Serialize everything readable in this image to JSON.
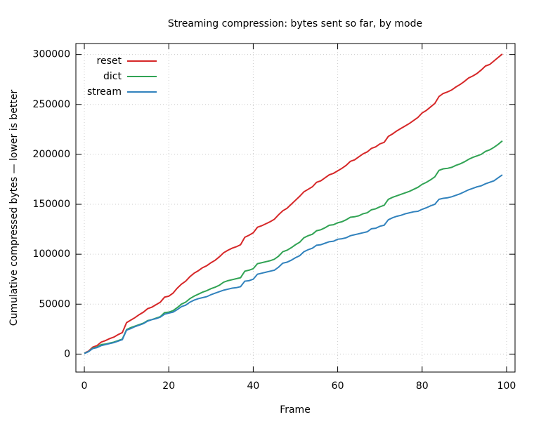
{
  "chart_data": {
    "type": "line",
    "title": "Streaming compression: bytes sent so far, by mode",
    "x_label": "Frame",
    "y_label": "Cumulative compressed bytes — lower is better",
    "x": [
      0,
      1,
      2,
      3,
      4,
      5,
      6,
      7,
      8,
      9,
      10,
      11,
      12,
      13,
      14,
      15,
      16,
      17,
      18,
      19,
      20,
      21,
      22,
      23,
      24,
      25,
      26,
      27,
      28,
      29,
      30,
      31,
      32,
      33,
      34,
      35,
      36,
      37,
      38,
      39,
      40,
      41,
      42,
      43,
      44,
      45,
      46,
      47,
      48,
      49,
      50,
      51,
      52,
      53,
      54,
      55,
      56,
      57,
      58,
      59,
      60,
      61,
      62,
      63,
      64,
      65,
      66,
      67,
      68,
      69,
      70,
      71,
      72,
      73,
      74,
      75,
      76,
      77,
      78,
      79,
      80,
      81,
      82,
      83,
      84,
      85,
      86,
      87,
      88,
      89,
      90,
      91,
      92,
      93,
      94,
      95,
      96,
      97,
      98,
      99
    ],
    "series": [
      {
        "name": "reset",
        "color": "#d62728",
        "values": [
          1000,
          3000,
          7000,
          8500,
          12000,
          13500,
          15500,
          17000,
          19500,
          21500,
          31500,
          34000,
          36500,
          39500,
          42000,
          45500,
          47000,
          49500,
          52000,
          57000,
          58000,
          61000,
          66000,
          70000,
          73000,
          77500,
          81000,
          83500,
          86500,
          88500,
          91500,
          94000,
          97500,
          101500,
          104000,
          106000,
          107500,
          109500,
          117000,
          119000,
          121500,
          127000,
          128500,
          130500,
          132500,
          135000,
          139500,
          143500,
          146000,
          150000,
          154000,
          158000,
          162500,
          165000,
          167500,
          172000,
          173500,
          176500,
          179500,
          181000,
          183500,
          186000,
          189000,
          193000,
          194500,
          197500,
          200500,
          202500,
          206000,
          207500,
          210500,
          212000,
          218000,
          220500,
          223500,
          226000,
          228500,
          231000,
          234000,
          237000,
          241500,
          244000,
          247500,
          251000,
          258000,
          261000,
          262500,
          264500,
          267500,
          270000,
          273000,
          276500,
          278500,
          281000,
          284500,
          288500,
          290000,
          293500,
          297000,
          300500
        ]
      },
      {
        "name": "dict",
        "color": "#31a354",
        "values": [
          800,
          2500,
          6000,
          7000,
          9500,
          10000,
          11000,
          12000,
          13500,
          15000,
          24500,
          26500,
          28000,
          29500,
          31000,
          33500,
          34500,
          36000,
          37500,
          41500,
          42000,
          43500,
          46500,
          50000,
          52000,
          55500,
          58000,
          60000,
          62000,
          63500,
          65500,
          67000,
          69000,
          72000,
          73500,
          74500,
          75500,
          76500,
          83000,
          84000,
          85500,
          90500,
          91500,
          92500,
          93500,
          95000,
          98000,
          102500,
          104000,
          106500,
          109500,
          112000,
          116500,
          118500,
          120000,
          123500,
          124500,
          126500,
          129000,
          129500,
          131500,
          132500,
          134500,
          137000,
          137500,
          138500,
          140500,
          141500,
          144500,
          145500,
          147500,
          149000,
          155000,
          157000,
          158500,
          160000,
          161500,
          163000,
          165000,
          167000,
          170000,
          172000,
          174500,
          177500,
          184000,
          185500,
          186000,
          187000,
          189000,
          190500,
          192500,
          195000,
          197000,
          198500,
          200000,
          203000,
          204500,
          207000,
          210000,
          213500
        ]
      },
      {
        "name": "stream",
        "color": "#3182bd",
        "values": [
          500,
          2500,
          5500,
          6500,
          8500,
          9500,
          10500,
          11500,
          13000,
          14500,
          24000,
          25500,
          27500,
          29000,
          30500,
          33000,
          34500,
          35500,
          37000,
          40000,
          41000,
          42000,
          44500,
          47500,
          49000,
          52000,
          54000,
          55500,
          56500,
          57500,
          59500,
          61000,
          62500,
          64000,
          65000,
          66000,
          66500,
          67500,
          73000,
          73500,
          75000,
          80000,
          81000,
          82000,
          83000,
          84000,
          87000,
          91000,
          92000,
          94000,
          96500,
          98500,
          102500,
          104500,
          106000,
          109000,
          109500,
          111000,
          112500,
          113000,
          115000,
          115500,
          116500,
          118500,
          119500,
          120500,
          121500,
          122500,
          125500,
          126000,
          128000,
          129000,
          134500,
          136500,
          138000,
          139000,
          140500,
          141500,
          142500,
          143000,
          145000,
          146500,
          148500,
          150000,
          155000,
          156000,
          156500,
          157500,
          159000,
          160500,
          162500,
          164500,
          166000,
          167500,
          168500,
          170500,
          172000,
          173500,
          176500,
          179500
        ]
      }
    ],
    "xlim": [
      -2,
      102
    ],
    "xticks": [
      0,
      20,
      40,
      60,
      80,
      100
    ],
    "ylim": [
      -18000,
      311000
    ],
    "yticks": [
      0,
      50000,
      100000,
      150000,
      200000,
      250000,
      300000
    ],
    "grid": true,
    "legend": "top-left"
  }
}
